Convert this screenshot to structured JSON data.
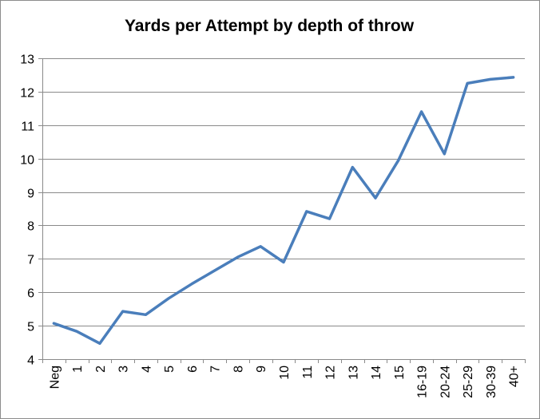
{
  "chart_data": {
    "type": "line",
    "title": "Yards per Attempt by depth of throw",
    "xlabel": "",
    "ylabel": "",
    "categories": [
      "Neg",
      "1",
      "2",
      "3",
      "4",
      "5",
      "6",
      "7",
      "8",
      "9",
      "10",
      "11",
      "12",
      "13",
      "14",
      "15",
      "16-19",
      "20-24",
      "25-29",
      "30-39",
      "40+"
    ],
    "series": [
      {
        "values": [
          5.07,
          4.83,
          4.47,
          5.43,
          5.33,
          5.82,
          6.25,
          6.65,
          7.05,
          7.37,
          6.9,
          8.42,
          8.2,
          9.74,
          8.82,
          9.95,
          11.4,
          10.14,
          12.25,
          12.37,
          12.43
        ],
        "color": "#4a7ebb"
      }
    ],
    "ylim": [
      4,
      13
    ],
    "yticks": [
      4,
      5,
      6,
      7,
      8,
      9,
      10,
      11,
      12,
      13
    ],
    "grid": true,
    "legend": "none"
  }
}
